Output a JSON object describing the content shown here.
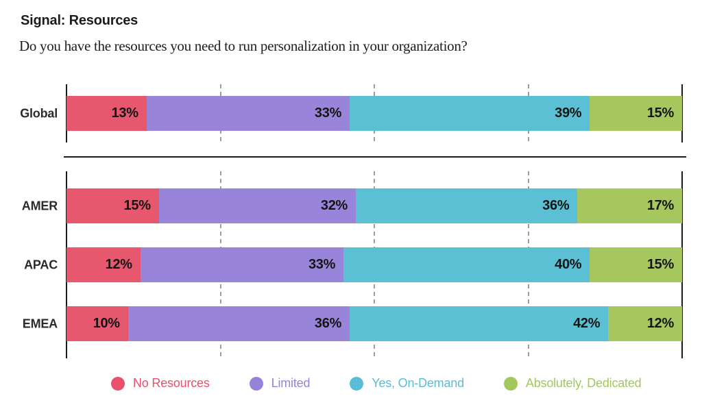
{
  "header": {
    "title": "Signal: Resources",
    "question": "Do you have the resources you need to run personalization in your organization?"
  },
  "chart_data": {
    "type": "bar",
    "stacked": true,
    "orientation": "horizontal",
    "xlim": [
      0,
      100
    ],
    "value_suffix": "%",
    "gridlines_pct": [
      25,
      50,
      75
    ],
    "grid_style": "dashed",
    "legend_position": "bottom",
    "categories": [
      "Global",
      "AMER",
      "APAC",
      "EMEA"
    ],
    "row_groups": [
      [
        0
      ],
      [
        1,
        2,
        3
      ]
    ],
    "series": [
      {
        "name": "No Resources",
        "color": "#E7586F",
        "values": [
          13,
          15,
          12,
          10
        ]
      },
      {
        "name": "Limited",
        "color": "#9884D9",
        "values": [
          33,
          32,
          33,
          36
        ]
      },
      {
        "name": "Yes, On-Demand",
        "color": "#5CC0D5",
        "values": [
          39,
          36,
          40,
          42
        ]
      },
      {
        "name": "Absolutely, Dedicated",
        "color": "#A5C75E",
        "values": [
          15,
          17,
          15,
          12
        ]
      }
    ]
  },
  "legend": {
    "items": [
      {
        "label": "No Resources",
        "color": "#E8506C"
      },
      {
        "label": "Limited",
        "color": "#9583DB"
      },
      {
        "label": "Yes, On-Demand",
        "color": "#59BDD8"
      },
      {
        "label": "Absolutely, Dedicated",
        "color": "#A2C75C"
      }
    ]
  },
  "colors": {
    "axis": "#1a1a1a",
    "grid": "#9b9b9b",
    "divider": "#1a1a1a",
    "value_label": "#141414"
  }
}
